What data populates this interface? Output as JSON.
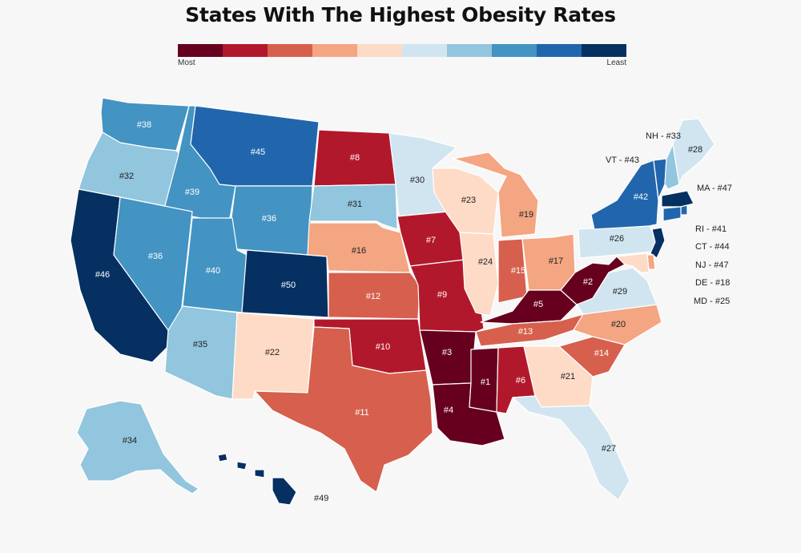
{
  "title": "States With The Highest Obesity Rates",
  "legend": {
    "most_label": "Most",
    "least_label": "Least",
    "colors": [
      "#67001f",
      "#b2182b",
      "#d6604d",
      "#f4a582",
      "#fddbc7",
      "#d1e5f0",
      "#92c5de",
      "#4393c3",
      "#2166ac",
      "#053061"
    ]
  },
  "states": [
    {
      "code": "WA",
      "label": "#38",
      "rank": 38
    },
    {
      "code": "OR",
      "label": "#32",
      "rank": 32
    },
    {
      "code": "CA",
      "label": "#46",
      "rank": 46
    },
    {
      "code": "ID",
      "label": "#39",
      "rank": 39
    },
    {
      "code": "NV",
      "label": "#36",
      "rank": 36
    },
    {
      "code": "MT",
      "label": "#45",
      "rank": 45
    },
    {
      "code": "WY",
      "label": "#36",
      "rank": 36
    },
    {
      "code": "UT",
      "label": "#40",
      "rank": 40
    },
    {
      "code": "CO",
      "label": "#50",
      "rank": 50
    },
    {
      "code": "AZ",
      "label": "#35",
      "rank": 35
    },
    {
      "code": "NM",
      "label": "#22",
      "rank": 22
    },
    {
      "code": "ND",
      "label": "#8",
      "rank": 8
    },
    {
      "code": "SD",
      "label": "#31",
      "rank": 31
    },
    {
      "code": "NE",
      "label": "#16",
      "rank": 16
    },
    {
      "code": "KS",
      "label": "#12",
      "rank": 12
    },
    {
      "code": "OK",
      "label": "#10",
      "rank": 10
    },
    {
      "code": "TX",
      "label": "#11",
      "rank": 11
    },
    {
      "code": "MN",
      "label": "#30",
      "rank": 30
    },
    {
      "code": "IA",
      "label": "#7",
      "rank": 7
    },
    {
      "code": "MO",
      "label": "#9",
      "rank": 9
    },
    {
      "code": "AR",
      "label": "#3",
      "rank": 3
    },
    {
      "code": "LA",
      "label": "#4",
      "rank": 4
    },
    {
      "code": "WI",
      "label": "#23",
      "rank": 23
    },
    {
      "code": "IL",
      "label": "#24",
      "rank": 24
    },
    {
      "code": "MI",
      "label": "#19",
      "rank": 19
    },
    {
      "code": "IN",
      "label": "#15",
      "rank": 15
    },
    {
      "code": "OH",
      "label": "#17",
      "rank": 17
    },
    {
      "code": "KY",
      "label": "#5",
      "rank": 5
    },
    {
      "code": "TN",
      "label": "#13",
      "rank": 13
    },
    {
      "code": "MS",
      "label": "#1",
      "rank": 1
    },
    {
      "code": "AL",
      "label": "#6",
      "rank": 6
    },
    {
      "code": "GA",
      "label": "#21",
      "rank": 21
    },
    {
      "code": "FL",
      "label": "#27",
      "rank": 27
    },
    {
      "code": "SC",
      "label": "#14",
      "rank": 14
    },
    {
      "code": "NC",
      "label": "#20",
      "rank": 20
    },
    {
      "code": "VA",
      "label": "#29",
      "rank": 29
    },
    {
      "code": "WV",
      "label": "#2",
      "rank": 2
    },
    {
      "code": "PA",
      "label": "#26",
      "rank": 26
    },
    {
      "code": "NY",
      "label": "#42",
      "rank": 42
    },
    {
      "code": "VT",
      "label": "VT - #43",
      "rank": 43
    },
    {
      "code": "NH",
      "label": "NH - #33",
      "rank": 33
    },
    {
      "code": "ME",
      "label": "#28",
      "rank": 28
    },
    {
      "code": "MA",
      "label": "MA - #47",
      "rank": 47
    },
    {
      "code": "RI",
      "label": "RI - #41",
      "rank": 41
    },
    {
      "code": "CT",
      "label": "CT - #44",
      "rank": 44
    },
    {
      "code": "NJ",
      "label": "NJ - #47",
      "rank": 47
    },
    {
      "code": "DE",
      "label": "DE - #18",
      "rank": 18
    },
    {
      "code": "MD",
      "label": "MD - #25",
      "rank": 25
    },
    {
      "code": "AK",
      "label": "#34",
      "rank": 34
    },
    {
      "code": "HI",
      "label": "#49",
      "rank": 49
    }
  ]
}
